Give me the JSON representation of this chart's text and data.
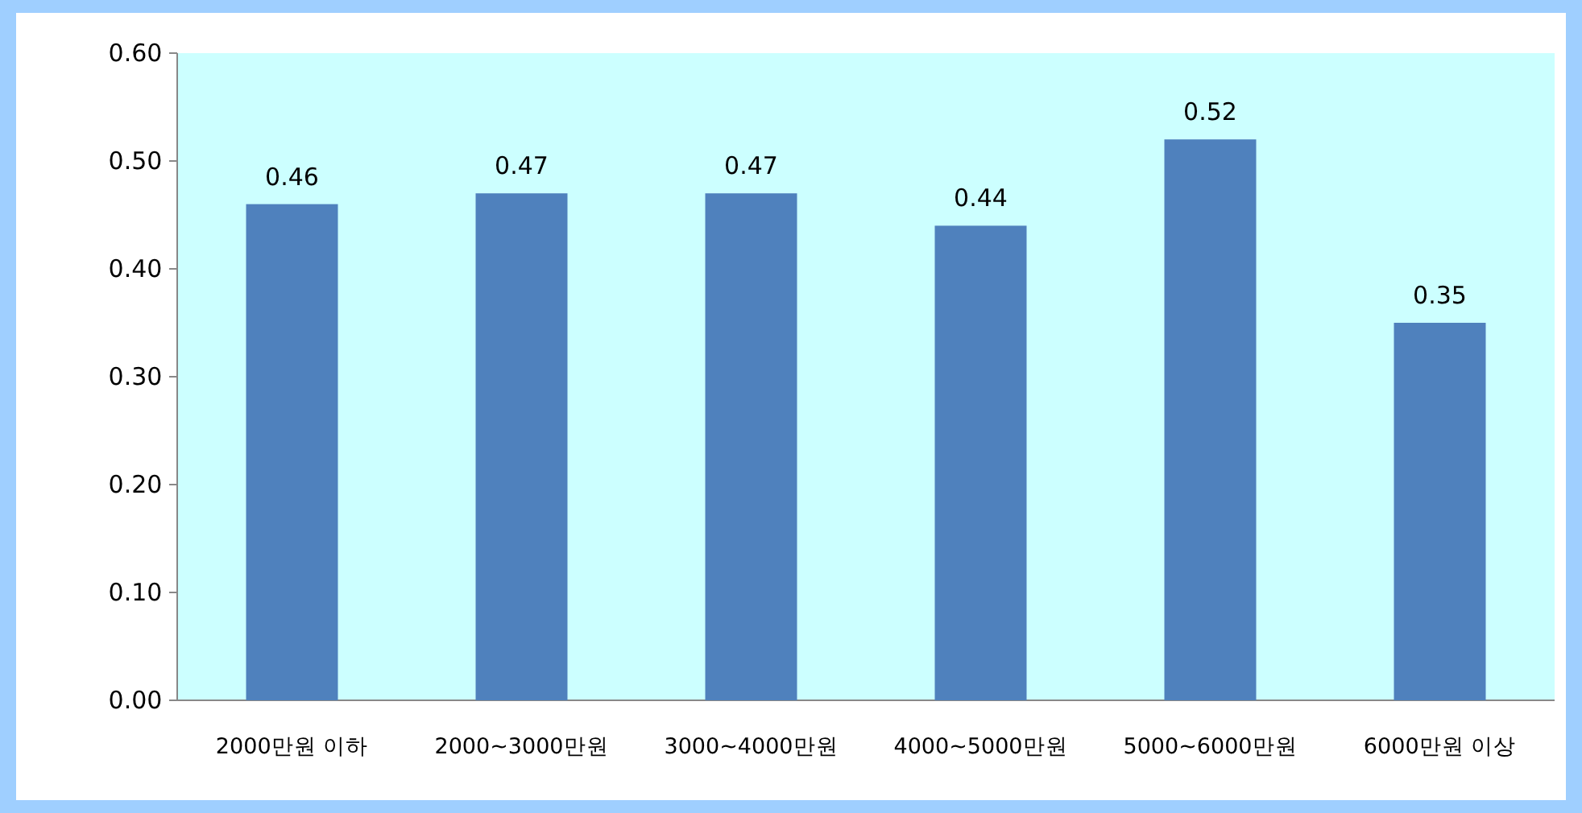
{
  "chart_data": {
    "type": "bar",
    "categories": [
      "2000만원 이하",
      "2000~3000만원",
      "3000~4000만원",
      "4000~5000만원",
      "5000~6000만원",
      "6000만원 이상"
    ],
    "values": [
      0.46,
      0.47,
      0.47,
      0.44,
      0.52,
      0.35
    ],
    "color": "#4f81bd",
    "data_labels": true,
    "ylim": [
      0,
      0.6
    ],
    "grid": false,
    "yticks": [
      {
        "value": 0,
        "label": "0.00"
      },
      {
        "value": 0.1,
        "label": "0.10"
      },
      {
        "value": 0.2,
        "label": "0.20"
      },
      {
        "value": 0.3,
        "label": "0.30"
      },
      {
        "value": 0.4,
        "label": "0.40"
      },
      {
        "value": 0.5,
        "label": "0.50"
      },
      {
        "value": 0.6,
        "label": "0.60"
      }
    ]
  }
}
